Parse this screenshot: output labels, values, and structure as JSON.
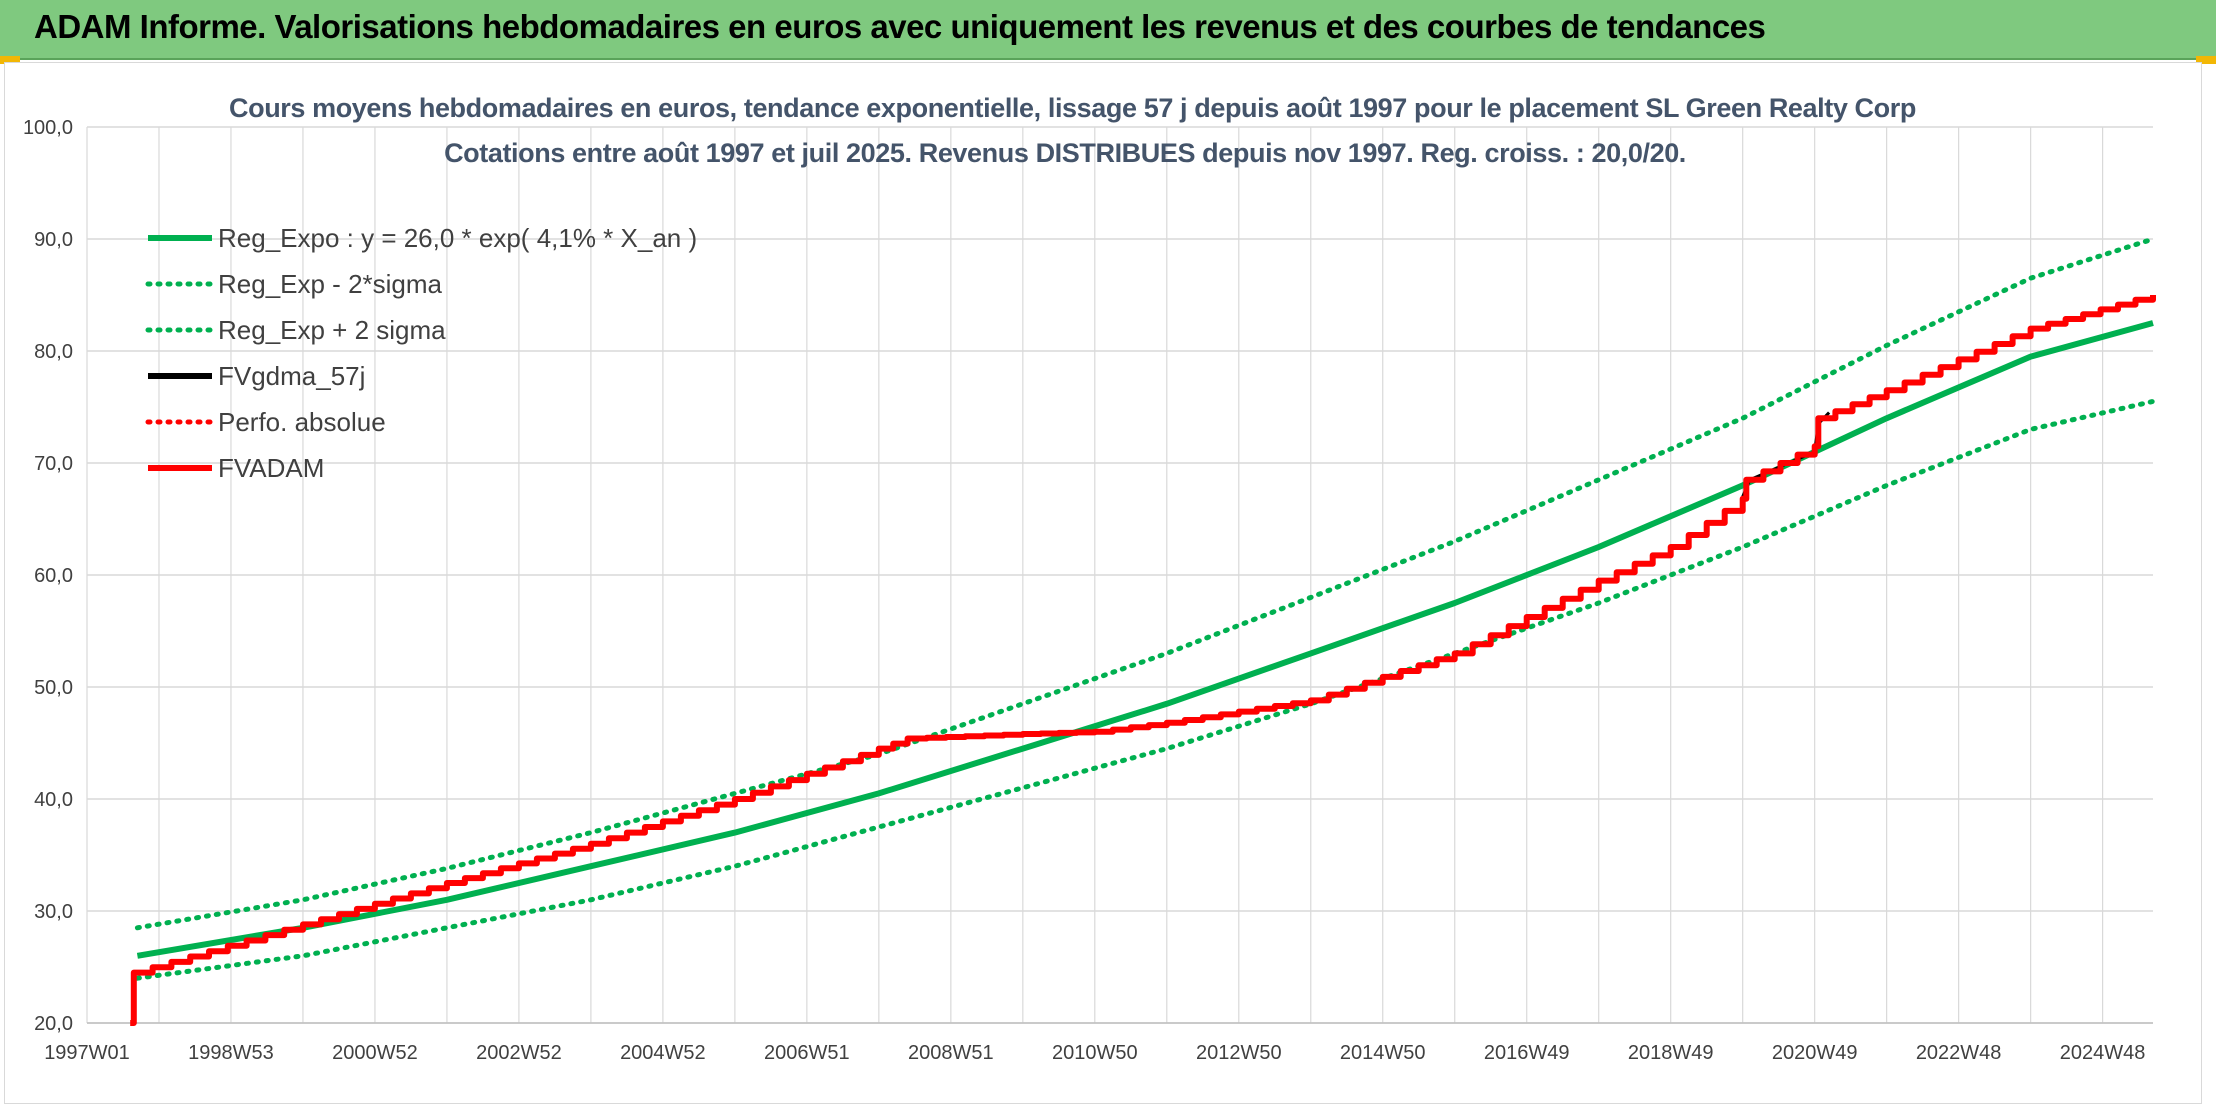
{
  "header": {
    "title": "ADAM Informe. Valorisations hebdomadaires en euros avec uniquement les revenus et des courbes de tendances"
  },
  "colors": {
    "banner": "#7fc97f",
    "trend_green": "#00b050",
    "fvadam_red": "#ff0000",
    "fvgdma_black": "#000000",
    "title_text": "#44546a",
    "grid": "#d9d9d9"
  },
  "chart_data": {
    "type": "line",
    "title_line1": "Cours moyens hebdomadaires en euros, tendance exponentielle, lissage 57 j depuis août 1997 pour le placement SL Green Realty Corp",
    "title_line2": "Cotations entre août 1997 et juil 2025. Revenus DISTRIBUES depuis nov 1997. Reg. croiss. : 20,0/20.",
    "ylim": [
      20,
      100
    ],
    "y_ticks": [
      "20,0",
      "30,0",
      "40,0",
      "50,0",
      "60,0",
      "70,0",
      "80,0",
      "90,0",
      "100,0"
    ],
    "x_tick_labels": [
      "1997W01",
      "1998W53",
      "2000W52",
      "2002W52",
      "2004W52",
      "2006W51",
      "2008W51",
      "2010W50",
      "2012W50",
      "2014W50",
      "2016W49",
      "2018W49",
      "2020W49",
      "2022W48",
      "2024W48"
    ],
    "x_range_years": [
      1997.0,
      2025.7
    ],
    "grid": true,
    "legend_position": "top-left",
    "series": [
      {
        "name": "Reg_Expo : y = 26,0 * exp( 4,1% *  X_an )",
        "style": "solid",
        "color": "#00b050",
        "points": [
          [
            1997.7,
            26.0
          ],
          [
            2000.0,
            28.5
          ],
          [
            2002.0,
            31.0
          ],
          [
            2004.0,
            34.0
          ],
          [
            2006.0,
            37.0
          ],
          [
            2008.0,
            40.5
          ],
          [
            2010.0,
            44.5
          ],
          [
            2012.0,
            48.5
          ],
          [
            2014.0,
            53.0
          ],
          [
            2016.0,
            57.5
          ],
          [
            2018.0,
            62.5
          ],
          [
            2020.0,
            68.0
          ],
          [
            2022.0,
            74.0
          ],
          [
            2024.0,
            79.5
          ],
          [
            2025.7,
            82.5
          ]
        ]
      },
      {
        "name": "Reg_Exp - 2*sigma",
        "style": "dotted",
        "color": "#00b050",
        "points": [
          [
            1997.7,
            24.0
          ],
          [
            2000.0,
            26.0
          ],
          [
            2002.0,
            28.5
          ],
          [
            2004.0,
            31.0
          ],
          [
            2006.0,
            34.0
          ],
          [
            2008.0,
            37.5
          ],
          [
            2010.0,
            41.0
          ],
          [
            2012.0,
            44.5
          ],
          [
            2014.0,
            48.5
          ],
          [
            2016.0,
            53.0
          ],
          [
            2018.0,
            57.5
          ],
          [
            2020.0,
            62.5
          ],
          [
            2022.0,
            68.0
          ],
          [
            2024.0,
            73.0
          ],
          [
            2025.7,
            75.5
          ]
        ]
      },
      {
        "name": "Reg_Exp + 2 sigma",
        "style": "dotted",
        "color": "#00b050",
        "points": [
          [
            1997.7,
            28.5
          ],
          [
            2000.0,
            31.0
          ],
          [
            2002.0,
            33.8
          ],
          [
            2004.0,
            37.0
          ],
          [
            2006.0,
            40.5
          ],
          [
            2008.0,
            44.0
          ],
          [
            2010.0,
            48.5
          ],
          [
            2012.0,
            53.0
          ],
          [
            2014.0,
            58.0
          ],
          [
            2016.0,
            63.0
          ],
          [
            2018.0,
            68.5
          ],
          [
            2020.0,
            74.0
          ],
          [
            2022.0,
            80.5
          ],
          [
            2024.0,
            86.5
          ],
          [
            2025.7,
            90.0
          ]
        ]
      },
      {
        "name": "FVgdma_57j",
        "style": "solid",
        "color": "#000000",
        "points": [
          [
            2020.0,
            67.0
          ],
          [
            2020.1,
            68.5
          ],
          [
            2021.0,
            71.0
          ],
          [
            2021.05,
            73.5
          ],
          [
            2021.2,
            74.5
          ]
        ]
      },
      {
        "name": "Perfo. absolue",
        "style": "dotted",
        "color": "#ff0000",
        "points": []
      },
      {
        "name": "FVADAM",
        "style": "solid-stepped",
        "color": "#ff0000",
        "points": [
          [
            1997.6,
            20.0
          ],
          [
            1997.65,
            24.5
          ],
          [
            2000.0,
            28.8
          ],
          [
            2002.0,
            32.5
          ],
          [
            2004.0,
            36.0
          ],
          [
            2006.0,
            40.0
          ],
          [
            2008.0,
            44.5
          ],
          [
            2008.4,
            45.4
          ],
          [
            2010.0,
            45.8
          ],
          [
            2011.0,
            46.0
          ],
          [
            2012.0,
            46.8
          ],
          [
            2013.0,
            47.8
          ],
          [
            2014.0,
            48.8
          ],
          [
            2016.0,
            53.0
          ],
          [
            2018.0,
            59.5
          ],
          [
            2019.0,
            62.5
          ],
          [
            2020.0,
            66.8
          ],
          [
            2020.05,
            68.5
          ],
          [
            2021.0,
            71.5
          ],
          [
            2021.05,
            74.0
          ],
          [
            2022.0,
            76.5
          ],
          [
            2024.0,
            82.0
          ],
          [
            2025.7,
            85.0
          ]
        ]
      }
    ]
  }
}
